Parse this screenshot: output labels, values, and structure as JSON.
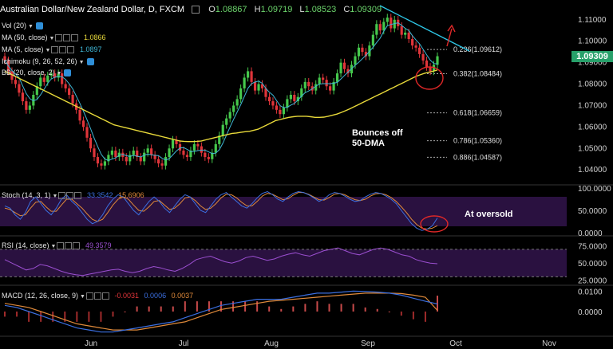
{
  "header": {
    "symbol": "Australian Dollar/New Zealand Dollar, D, FXCM",
    "open_label": "O",
    "open": "1.08867",
    "high_label": "H",
    "high": "1.09719",
    "low_label": "L",
    "low": "1.08523",
    "close_label": "C",
    "close": "1.09309"
  },
  "indicators": {
    "vol": "Vol (20)",
    "ma50": "MA (50, close)",
    "ma50_val": "1.0866",
    "ma5": "MA (5, close)",
    "ma5_val": "1.0897",
    "ichimoku": "Ichimoku (9, 26, 52, 26)",
    "bb": "BB (20, close, 2)",
    "stoch": "Stoch (14, 3, 1)",
    "stoch_k": "33.3542",
    "stoch_d": "15.6906",
    "rsi": "RSI (14, close)",
    "rsi_val": "49.3579",
    "macd": "MACD (12, 26, close, 9)",
    "macd_hist": "-0.0031",
    "macd_signal": "0.0006",
    "macd_line": "0.0037"
  },
  "last_price": "1.09309",
  "colors": {
    "up": "#45c84c",
    "down": "#e0353a",
    "ma50": "#e8d93a",
    "ma5": "#3fb7d6",
    "stoch_k": "#3b6fe0",
    "stoch_d": "#e08a3a",
    "rsi": "#9b4fd0",
    "macd": "#3b6fe0",
    "signal": "#e08a3a",
    "trend": "#2ec8e8",
    "arrow": "#e02828",
    "osc_band": "#2a1140",
    "last_price_bg": "#27a06a"
  },
  "chart_data": {
    "type": "candlestick",
    "x_labels": [
      "Jun",
      "Jul",
      "Aug",
      "Sep",
      "Oct",
      "Nov"
    ],
    "y_ticks": [
      "1.11000",
      "1.10000",
      "1.09000",
      "1.08000",
      "1.07000",
      "1.06000",
      "1.05000",
      "1.04000"
    ],
    "ylim": [
      1.0345,
      1.1155
    ],
    "fib_levels": [
      {
        "label": "0.236(1.09612)",
        "value": 1.09612
      },
      {
        "label": "0.382(1.08484)",
        "value": 1.08484
      },
      {
        "label": "0.618(1.06659)",
        "value": 1.06659
      },
      {
        "label": "0.786(1.05360)",
        "value": 1.0536
      },
      {
        "label": "0.886(1.04587)",
        "value": 1.04587
      }
    ],
    "annotations": {
      "bounce_line1": "Bounces off",
      "bounce_line2": "50-DMA",
      "oversold": "At oversold"
    },
    "candles_close": [
      1.091,
      1.086,
      1.082,
      1.08,
      1.076,
      1.072,
      1.068,
      1.07,
      1.075,
      1.079,
      1.083,
      1.081,
      1.084,
      1.085,
      1.083,
      1.085,
      1.08,
      1.078,
      1.075,
      1.071,
      1.068,
      1.063,
      1.06,
      1.055,
      1.05,
      1.046,
      1.043,
      1.042,
      1.044,
      1.047,
      1.049,
      1.046,
      1.048,
      1.046,
      1.044,
      1.047,
      1.049,
      1.046,
      1.044,
      1.048,
      1.05,
      1.047,
      1.045,
      1.043,
      1.042,
      1.046,
      1.05,
      1.054,
      1.052,
      1.049,
      1.047,
      1.046,
      1.049,
      1.052,
      1.051,
      1.048,
      1.046,
      1.045,
      1.048,
      1.052,
      1.056,
      1.061,
      1.064,
      1.067,
      1.07,
      1.073,
      1.078,
      1.083,
      1.086,
      1.081,
      1.077,
      1.08,
      1.078,
      1.074,
      1.072,
      1.07,
      1.068,
      1.066,
      1.069,
      1.073,
      1.075,
      1.072,
      1.074,
      1.078,
      1.081,
      1.079,
      1.077,
      1.08,
      1.083,
      1.082,
      1.079,
      1.077,
      1.081,
      1.085,
      1.09,
      1.087,
      1.085,
      1.089,
      1.093,
      1.097,
      1.095,
      1.093,
      1.098,
      1.103,
      1.108,
      1.105,
      1.109,
      1.111,
      1.106,
      1.11,
      1.107,
      1.103,
      1.104,
      1.101,
      1.098,
      1.097,
      1.094,
      1.091,
      1.088,
      1.086,
      1.089,
      1.093
    ],
    "ma50": [
      1.086,
      1.085,
      1.084,
      1.083,
      1.082,
      1.081,
      1.08,
      1.079,
      1.078,
      1.077,
      1.076,
      1.075,
      1.074,
      1.073,
      1.072,
      1.071,
      1.07,
      1.069,
      1.068,
      1.067,
      1.066,
      1.065,
      1.064,
      1.063,
      1.062,
      1.061,
      1.0605,
      1.06,
      1.0595,
      1.059,
      1.0585,
      1.058,
      1.0575,
      1.057,
      1.0565,
      1.056,
      1.0555,
      1.055,
      1.0545,
      1.054,
      1.0535,
      1.0533,
      1.0532,
      1.0532,
      1.0533,
      1.0535,
      1.054,
      1.0545,
      1.055,
      1.0555,
      1.056,
      1.0565,
      1.057,
      1.0572,
      1.0575,
      1.0578,
      1.058,
      1.0585,
      1.059,
      1.06,
      1.061,
      1.062,
      1.063,
      1.0635,
      1.064,
      1.0645,
      1.0648,
      1.065,
      1.065,
      1.065,
      1.0648,
      1.0645,
      1.0645,
      1.0646,
      1.065,
      1.0655,
      1.066,
      1.0668,
      1.0676,
      1.0685,
      1.0695,
      1.0705,
      1.0715,
      1.0725,
      1.0735,
      1.0745,
      1.0755,
      1.0765,
      1.0775,
      1.0785,
      1.0795,
      1.0805,
      1.0815,
      1.0825,
      1.0835,
      1.0843,
      1.085,
      1.0855,
      1.086,
      1.0866
    ],
    "stoch_k": [
      60,
      55,
      40,
      30,
      45,
      70,
      80,
      65,
      50,
      40,
      55,
      75,
      85,
      70,
      60,
      45,
      30,
      20,
      25,
      40,
      60,
      75,
      85,
      80,
      65,
      50,
      40,
      55,
      70,
      80,
      70,
      55,
      45,
      60,
      75,
      85,
      80,
      65,
      50,
      45,
      60,
      75,
      85,
      90,
      80,
      70,
      60,
      55,
      65,
      78,
      88,
      92,
      85,
      75,
      70,
      80,
      88,
      92,
      90,
      85,
      78,
      70,
      75,
      85,
      90,
      88,
      82,
      75,
      70,
      72,
      80,
      86,
      90,
      88,
      82,
      75,
      65,
      50,
      35,
      20,
      10,
      5,
      8,
      15,
      33
    ],
    "stoch_d": [
      55,
      52,
      45,
      38,
      40,
      55,
      68,
      70,
      58,
      48,
      48,
      62,
      75,
      75,
      65,
      55,
      42,
      30,
      25,
      30,
      45,
      62,
      75,
      80,
      75,
      62,
      50,
      48,
      58,
      70,
      72,
      62,
      52,
      55,
      65,
      78,
      80,
      72,
      60,
      52,
      55,
      65,
      78,
      86,
      85,
      78,
      68,
      60,
      60,
      70,
      82,
      88,
      86,
      80,
      74,
      76,
      84,
      90,
      90,
      86,
      80,
      74,
      73,
      79,
      86,
      88,
      85,
      79,
      74,
      72,
      75,
      82,
      87,
      88,
      85,
      79,
      70,
      58,
      45,
      30,
      18,
      10,
      8,
      10,
      15.7
    ],
    "rsi": [
      55,
      50,
      45,
      40,
      42,
      48,
      46,
      42,
      38,
      35,
      33,
      32,
      34,
      36,
      38,
      40,
      41,
      38,
      36,
      38,
      42,
      45,
      43,
      40,
      38,
      42,
      48,
      55,
      58,
      60,
      56,
      52,
      50,
      53,
      58,
      60,
      57,
      54,
      56,
      60,
      63,
      65,
      62,
      60,
      64,
      68,
      70,
      72,
      68,
      64,
      62,
      66,
      70,
      72,
      70,
      66,
      62,
      60,
      55,
      52,
      50,
      49
    ],
    "macd": [
      0.003,
      0.002,
      0.0,
      -0.002,
      -0.004,
      -0.006,
      -0.008,
      -0.009,
      -0.01,
      -0.01,
      -0.009,
      -0.008,
      -0.007,
      -0.006,
      -0.005,
      -0.003,
      -0.001,
      0.001,
      0.003,
      0.004,
      0.005,
      0.006,
      0.006,
      0.006,
      0.007,
      0.008,
      0.009,
      0.009,
      0.0095,
      0.01,
      0.0098,
      0.0095,
      0.009,
      0.008,
      0.0065,
      0.005,
      0.0037
    ],
    "signal": [
      0.004,
      0.003,
      0.002,
      0.0,
      -0.002,
      -0.004,
      -0.006,
      -0.007,
      -0.008,
      -0.009,
      -0.009,
      -0.009,
      -0.008,
      -0.007,
      -0.006,
      -0.005,
      -0.003,
      -0.001,
      0.001,
      0.002,
      0.003,
      0.004,
      0.005,
      0.0055,
      0.006,
      0.0065,
      0.007,
      0.0075,
      0.008,
      0.0085,
      0.009,
      0.009,
      0.009,
      0.0088,
      0.008,
      0.007,
      0.0006
    ]
  }
}
